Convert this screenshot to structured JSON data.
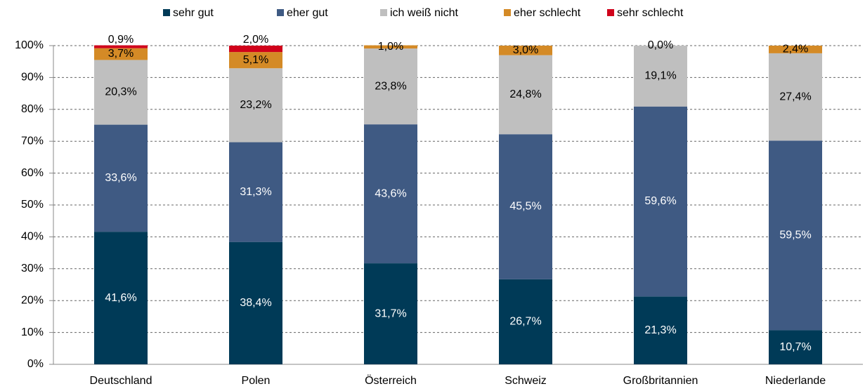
{
  "chart_data": {
    "type": "stacked_bar",
    "categories": [
      "Deutschland",
      "Polen",
      "Österreich",
      "Schweiz",
      "Großbritannien",
      "Niederlande"
    ],
    "series": [
      {
        "name": "sehr gut",
        "color": "#003a57",
        "values": [
          41.6,
          38.4,
          31.7,
          26.7,
          21.3,
          10.7
        ],
        "value_labels": [
          "41,6%",
          "38,4%",
          "31,7%",
          "26,7%",
          "21,3%",
          "10,7%"
        ]
      },
      {
        "name": "eher gut",
        "color": "#3f5a83",
        "values": [
          33.6,
          31.3,
          43.6,
          45.5,
          59.6,
          59.5
        ],
        "value_labels": [
          "33,6%",
          "31,3%",
          "43,6%",
          "45,5%",
          "59,6%",
          "59,5%"
        ]
      },
      {
        "name": "ich weiß nicht",
        "color": "#bfbfbf",
        "values": [
          20.3,
          23.2,
          23.8,
          24.8,
          19.1,
          27.4
        ],
        "value_labels": [
          "20,3%",
          "23,2%",
          "23,8%",
          "24,8%",
          "19,1%",
          "27,4%"
        ]
      },
      {
        "name": "eher schlecht",
        "color": "#d48a26",
        "values": [
          3.7,
          5.1,
          1.0,
          3.0,
          0.0,
          2.4
        ],
        "value_labels": [
          "3,7%",
          "5,1%",
          "1,0%",
          "3,0%",
          "0,0%",
          "2,4%"
        ]
      },
      {
        "name": "sehr schlecht",
        "color": "#d0021b",
        "values": [
          0.9,
          2.0,
          null,
          null,
          null,
          null
        ],
        "value_labels": [
          "0,9%",
          "2,0%",
          null,
          null,
          null,
          null
        ]
      }
    ],
    "ylim": [
      0,
      100
    ],
    "yticks": [
      {
        "value": 0,
        "label": "0%"
      },
      {
        "value": 10,
        "label": "10%"
      },
      {
        "value": 20,
        "label": "20%"
      },
      {
        "value": 30,
        "label": "30%"
      },
      {
        "value": 40,
        "label": "40%"
      },
      {
        "value": 50,
        "label": "50%"
      },
      {
        "value": 60,
        "label": "60%"
      },
      {
        "value": 70,
        "label": "70%"
      },
      {
        "value": 80,
        "label": "80%"
      },
      {
        "value": 90,
        "label": "90%"
      },
      {
        "value": 100,
        "label": "100%"
      }
    ],
    "grid": true,
    "legend": "top"
  }
}
